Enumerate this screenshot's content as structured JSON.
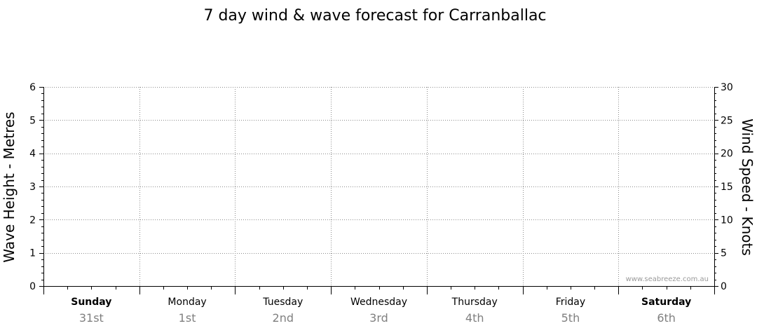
{
  "chart_data": {
    "type": "line",
    "title": "7 day wind & wave forecast for Carranballac",
    "ylabel_left": "Wave Height - Metres",
    "ylabel_right": "Wind Speed - Knots",
    "ylim_left": [
      0,
      6
    ],
    "ylim_right": [
      0,
      30
    ],
    "yticks_left": [
      "0",
      "1",
      "2",
      "3",
      "4",
      "5",
      "6"
    ],
    "yticks_right": [
      "0",
      "5",
      "10",
      "15",
      "20",
      "25",
      "30"
    ],
    "grid": true,
    "days": [
      {
        "name": "Sunday",
        "date": "31st",
        "weekend": true
      },
      {
        "name": "Monday",
        "date": "1st",
        "weekend": false
      },
      {
        "name": "Tuesday",
        "date": "2nd",
        "weekend": false
      },
      {
        "name": "Wednesday",
        "date": "3rd",
        "weekend": false
      },
      {
        "name": "Thursday",
        "date": "4th",
        "weekend": false
      },
      {
        "name": "Friday",
        "date": "5th",
        "weekend": false
      },
      {
        "name": "Saturday",
        "date": "6th",
        "weekend": true
      }
    ],
    "series": [],
    "watermark": "www.seabreeze.com.au"
  }
}
